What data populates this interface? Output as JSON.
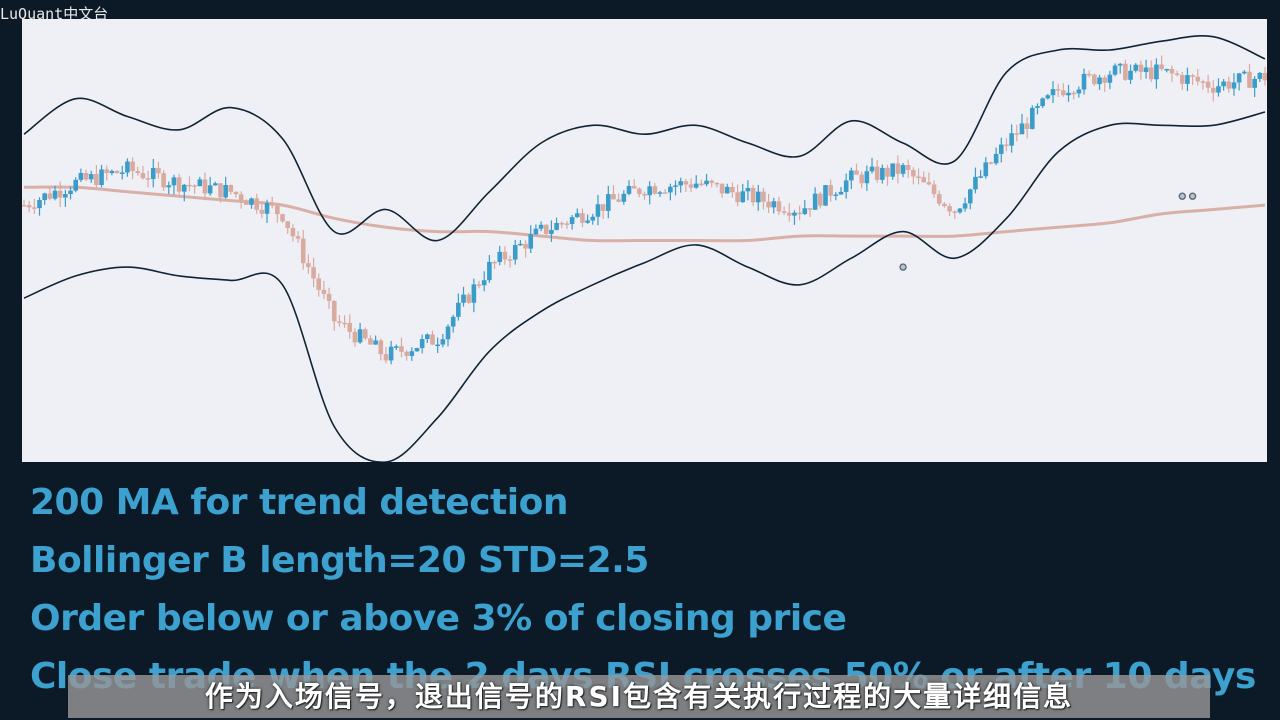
{
  "watermark": "LuQuant中文台",
  "colors": {
    "background": "#0c1a28",
    "chart_background": "#eef0f6",
    "bullish_candle": "#3b9cc9",
    "bearish_candle": "#d9aaa0",
    "bands": "#102435",
    "moving_average": "#d8b0a8",
    "bullet_text": "#3ca1cf"
  },
  "chart_data": {
    "type": "line",
    "title": "",
    "xlabel": "",
    "ylabel": "",
    "grid": false,
    "legend": "none",
    "x": [
      0,
      10,
      20,
      30,
      40,
      50,
      60,
      70,
      80,
      90,
      100,
      110,
      120,
      130,
      140,
      150,
      160,
      170,
      180,
      190,
      200,
      210,
      220,
      230,
      240
    ],
    "series": [
      {
        "values": [
          58,
          63,
          66,
          63,
          61,
          56,
          32,
          24,
          28,
          44,
          52,
          57,
          62,
          63,
          60,
          57,
          64,
          66,
          57,
          72,
          84,
          88,
          88,
          85,
          87
        ]
      },
      {
        "values": [
          74,
          82,
          78,
          75,
          80,
          73,
          52,
          57,
          50,
          61,
          72,
          76,
          74,
          76,
          72,
          69,
          77,
          72,
          68,
          88,
          93,
          93,
          95,
          96,
          91
        ]
      },
      {
        "values": [
          37,
          42,
          44,
          42,
          41,
          40,
          8,
          0,
          10,
          25,
          34,
          40,
          45,
          49,
          44,
          40,
          46,
          52,
          46,
          55,
          70,
          76,
          76,
          76,
          79
        ]
      },
      {
        "values": [
          62,
          62,
          61,
          60,
          59,
          58,
          55,
          53,
          52,
          52,
          51,
          50,
          50,
          50,
          50,
          51,
          51,
          51,
          51,
          52,
          53,
          54,
          56,
          57,
          58
        ]
      }
    ],
    "markers": [
      [
        170,
        44
      ],
      [
        224,
        60
      ],
      [
        226,
        60
      ]
    ]
  },
  "bullets": [
    "200 MA for trend detection",
    "Bollinger B length=20 STD=2.5",
    "Order below or above 3% of closing price",
    "Close trade when the 2 days RSI crosses 50% or after 10 days"
  ],
  "subtitle": "作为入场信号，退出信号的RSI包含有关执行过程的大量详细信息"
}
